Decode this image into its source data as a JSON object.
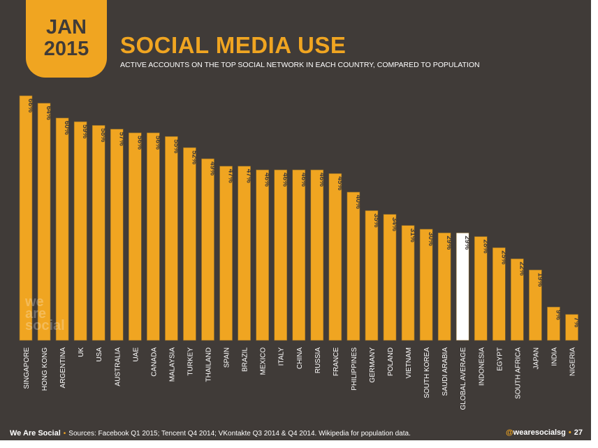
{
  "badge": {
    "month": "JAN",
    "year": "2015"
  },
  "header": {
    "title": "SOCIAL MEDIA USE",
    "subtitle": "ACTIVE ACCOUNTS ON THE TOP SOCIAL NETWORK IN EACH COUNTRY, COMPARED TO POPULATION"
  },
  "watermark": "we are social",
  "footer": {
    "brand": "We Are Social",
    "sources": "Sources: Facebook Q1 2015; Tencent Q4 2014; VKontakte Q3 2014 & Q4 2014. Wikipedia for population data.",
    "handle": "@wearesocialsg",
    "page": "27"
  },
  "colors": {
    "bar": "#f0a521",
    "highlight": "#ffffff",
    "background": "#403b38",
    "label": "#403b38"
  },
  "chart_data": {
    "type": "bar",
    "title": "SOCIAL MEDIA USE",
    "ylabel": "Active accounts as % of population",
    "ylim": [
      0,
      66
    ],
    "highlight": "GLOBAL AVERAGE",
    "categories": [
      "SINGAPORE",
      "HONG KONG",
      "ARGENTINA",
      "UK",
      "USA",
      "AUSTRALIA",
      "UAE",
      "CANADA",
      "MALAYSIA",
      "TURKEY",
      "THAILAND",
      "SPAIN",
      "BRAZIL",
      "MEXICO",
      "ITALY",
      "CHINA",
      "RUSSIA",
      "FRANCE",
      "PHILIPPINES",
      "GERMANY",
      "POLAND",
      "VIETNAM",
      "SOUTH KOREA",
      "SAUDI ARABIA",
      "GLOBAL AVERAGE",
      "INDONESIA",
      "EGYPT",
      "SOUTH AFRICA",
      "JAPAN",
      "INDIA",
      "NIGERIA"
    ],
    "values": [
      66,
      64,
      60,
      59,
      58,
      57,
      56,
      56,
      55,
      52,
      49,
      47,
      47,
      46,
      46,
      46,
      46,
      45,
      40,
      35,
      34,
      31,
      30,
      29,
      29,
      28,
      25,
      22,
      19,
      9,
      7
    ],
    "value_suffix": "%"
  }
}
